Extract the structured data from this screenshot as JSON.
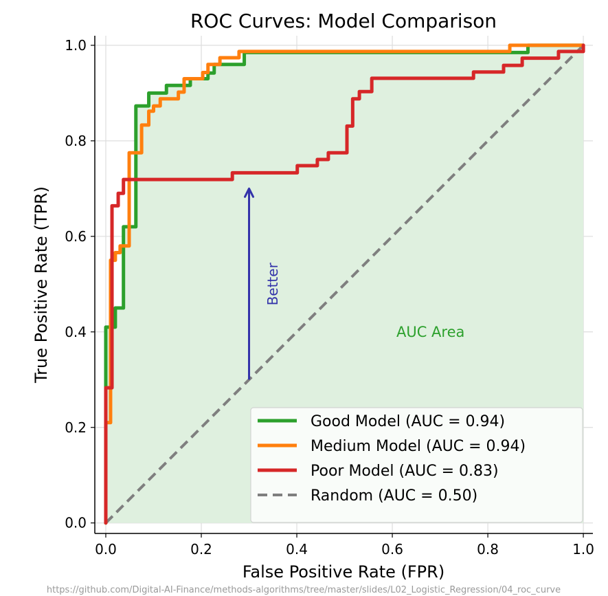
{
  "chart_data": {
    "type": "line",
    "title": "ROC Curves: Model Comparison",
    "xlabel": "False Positive Rate (FPR)",
    "ylabel": "True Positive Rate (TPR)",
    "xlim": [
      -0.023,
      1.02
    ],
    "ylim": [
      -0.022,
      1.02
    ],
    "xticks": [
      "0.0",
      "0.2",
      "0.4",
      "0.6",
      "0.8",
      "1.0"
    ],
    "yticks": [
      "0.0",
      "0.2",
      "0.4",
      "0.6",
      "0.8",
      "1.0"
    ],
    "grid": true,
    "legend_position": "bottom-right",
    "series": [
      {
        "name": "Good Model (AUC = 0.94)",
        "color": "#2ca02c",
        "style": "solid",
        "fill_under": true,
        "fill_color": "#dff0df",
        "x": [
          0,
          0,
          0.02,
          0.02,
          0.037,
          0.037,
          0.063,
          0.063,
          0.09,
          0.09,
          0.127,
          0.127,
          0.177,
          0.177,
          0.214,
          0.214,
          0.227,
          0.227,
          0.29,
          0.29,
          0.884,
          0.884,
          1.0
        ],
        "y": [
          0,
          0.41,
          0.41,
          0.45,
          0.45,
          0.62,
          0.62,
          0.873,
          0.873,
          0.9,
          0.9,
          0.916,
          0.916,
          0.93,
          0.93,
          0.942,
          0.942,
          0.96,
          0.96,
          0.985,
          0.985,
          1.0,
          1.0
        ]
      },
      {
        "name": "Medium Model (AUC = 0.94)",
        "color": "#ff7f0e",
        "style": "solid",
        "x": [
          0,
          0,
          0.01,
          0.01,
          0.02,
          0.02,
          0.03,
          0.03,
          0.049,
          0.049,
          0.075,
          0.075,
          0.09,
          0.09,
          0.1,
          0.1,
          0.114,
          0.114,
          0.152,
          0.152,
          0.164,
          0.164,
          0.203,
          0.203,
          0.214,
          0.214,
          0.239,
          0.239,
          0.279,
          0.279,
          0.846,
          0.846,
          1.0
        ],
        "y": [
          0,
          0.21,
          0.21,
          0.55,
          0.55,
          0.566,
          0.566,
          0.58,
          0.58,
          0.775,
          0.775,
          0.833,
          0.833,
          0.862,
          0.862,
          0.873,
          0.873,
          0.888,
          0.888,
          0.902,
          0.902,
          0.93,
          0.93,
          0.943,
          0.943,
          0.96,
          0.96,
          0.974,
          0.974,
          0.987,
          0.987,
          1.0,
          1.0
        ]
      },
      {
        "name": "Poor Model (AUC = 0.83)",
        "color": "#d62728",
        "style": "solid",
        "x": [
          0,
          0,
          0.013,
          0.013,
          0.026,
          0.026,
          0.037,
          0.037,
          0.265,
          0.265,
          0.401,
          0.401,
          0.443,
          0.443,
          0.466,
          0.466,
          0.505,
          0.505,
          0.517,
          0.517,
          0.531,
          0.531,
          0.557,
          0.557,
          0.77,
          0.77,
          0.833,
          0.833,
          0.872,
          0.872,
          0.948,
          0.948,
          1.0,
          1.0
        ],
        "y": [
          0,
          0.283,
          0.283,
          0.664,
          0.664,
          0.69,
          0.69,
          0.719,
          0.719,
          0.733,
          0.733,
          0.748,
          0.748,
          0.761,
          0.761,
          0.775,
          0.775,
          0.831,
          0.831,
          0.888,
          0.888,
          0.903,
          0.903,
          0.931,
          0.931,
          0.944,
          0.944,
          0.958,
          0.958,
          0.973,
          0.973,
          0.987,
          0.987,
          1.0
        ]
      },
      {
        "name": "Random (AUC = 0.50)",
        "color": "#7f7f7f",
        "style": "dashed",
        "x": [
          0,
          1
        ],
        "y": [
          0,
          1
        ]
      }
    ],
    "annotations": [
      {
        "text": "Better",
        "type": "arrow",
        "color": "#3333aa",
        "from": [
          0.3,
          0.3
        ],
        "to": [
          0.3,
          0.7
        ],
        "label_at": [
          0.36,
          0.5
        ],
        "rotation": -90
      },
      {
        "text": "AUC Area",
        "color": "#2ca02c",
        "at": [
          0.68,
          0.4
        ]
      }
    ],
    "watermark": "https://github.com/Digital-AI-Finance/methods-algorithms/tree/master/slides/L02_Logistic_Regression/04_roc_curve"
  }
}
